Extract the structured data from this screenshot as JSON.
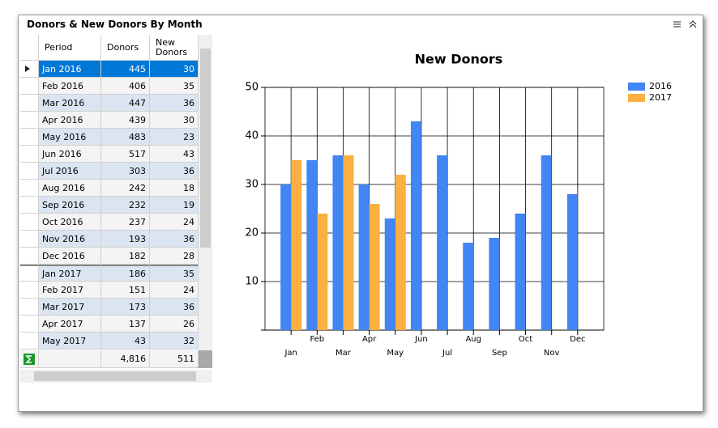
{
  "panel": {
    "title": "Donors & New Donors By Month"
  },
  "table": {
    "columns": [
      "Period",
      "Donors",
      "New Donors"
    ],
    "rows": [
      [
        "Jan 2016",
        445,
        30
      ],
      [
        "Feb 2016",
        406,
        35
      ],
      [
        "Mar 2016",
        447,
        36
      ],
      [
        "Apr 2016",
        439,
        30
      ],
      [
        "May 2016",
        483,
        23
      ],
      [
        "Jun 2016",
        517,
        43
      ],
      [
        "Jul 2016",
        303,
        36
      ],
      [
        "Aug 2016",
        242,
        18
      ],
      [
        "Sep 2016",
        232,
        19
      ],
      [
        "Oct 2016",
        237,
        24
      ],
      [
        "Nov 2016",
        193,
        36
      ],
      [
        "Dec 2016",
        182,
        28
      ],
      [
        "Jan 2017",
        186,
        35
      ],
      [
        "Feb 2017",
        151,
        24
      ],
      [
        "Mar 2017",
        173,
        36
      ],
      [
        "Apr 2017",
        137,
        26
      ],
      [
        "May 2017",
        43,
        32
      ]
    ],
    "totals": [
      "4,816",
      511
    ]
  },
  "chart_data": {
    "type": "bar",
    "title": "New Donors",
    "categories": [
      "Jan",
      "Feb",
      "Mar",
      "Apr",
      "May",
      "Jun",
      "Jul",
      "Aug",
      "Sep",
      "Oct",
      "Nov",
      "Dec"
    ],
    "series": [
      {
        "name": "2016",
        "color": "#4285f4",
        "values": [
          30,
          35,
          36,
          30,
          23,
          43,
          36,
          18,
          19,
          24,
          36,
          28
        ]
      },
      {
        "name": "2017",
        "color": "#fbb040",
        "values": [
          35,
          24,
          36,
          26,
          32,
          null,
          null,
          null,
          null,
          null,
          null,
          null
        ]
      }
    ],
    "ylim": [
      0,
      50
    ],
    "yticks": [
      10,
      20,
      30,
      40,
      50
    ],
    "grid": true,
    "legend": "top-right"
  }
}
